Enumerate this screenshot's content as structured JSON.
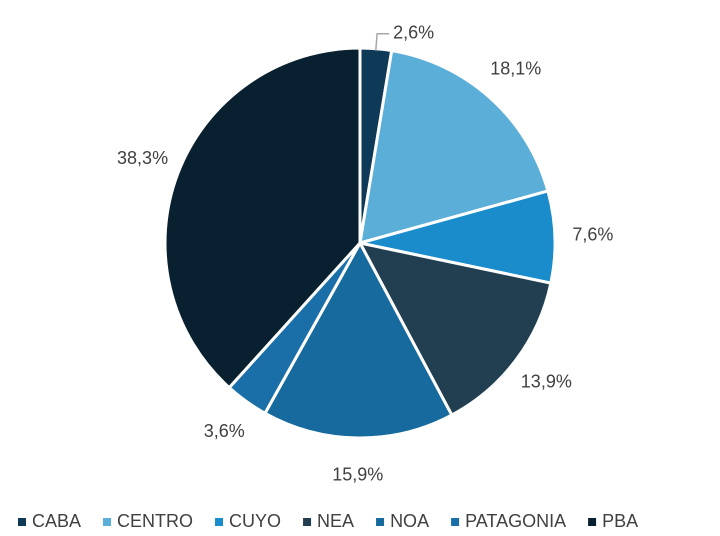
{
  "chart_data": {
    "type": "pie",
    "categories": [
      "CABA",
      "CENTRO",
      "CUYO",
      "NEA",
      "NOA",
      "PATAGONIA",
      "PBA"
    ],
    "values": [
      2.6,
      18.1,
      7.6,
      13.9,
      15.9,
      3.6,
      38.3
    ],
    "value_labels": [
      "2,6%",
      "18,1%",
      "7,6%",
      "13,9%",
      "15,9%",
      "3,6%",
      "38,3%"
    ],
    "colors": [
      "#0f3a57",
      "#5aaed8",
      "#1a8ccc",
      "#223f52",
      "#166a9e",
      "#1a6fa8",
      "#08202f"
    ],
    "legend": "bottom"
  }
}
